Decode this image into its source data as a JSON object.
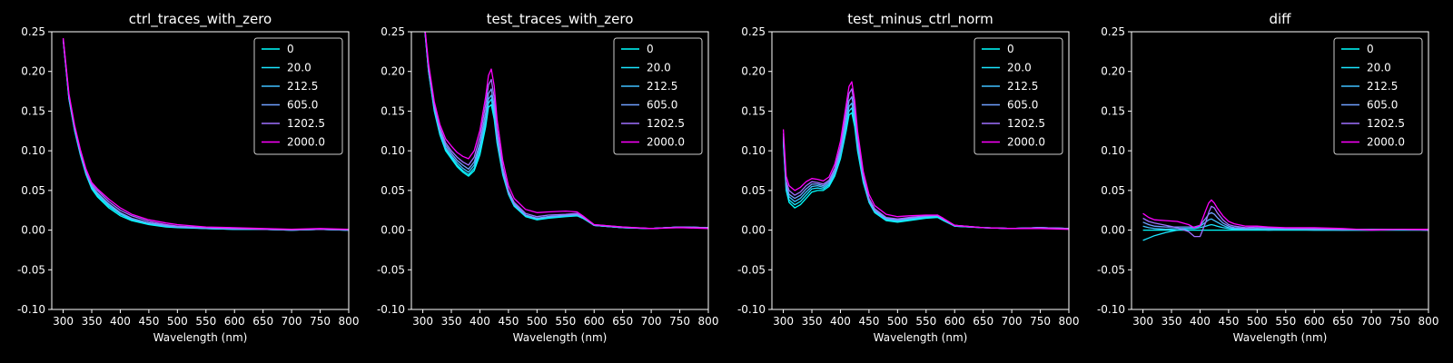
{
  "chart_data": [
    {
      "type": "line",
      "title": "ctrl_traces_with_zero",
      "xlabel": "Wavelength (nm)",
      "ylabel": "",
      "xlim": [
        280,
        800
      ],
      "ylim": [
        -0.1,
        0.25
      ],
      "xticks": [
        300,
        350,
        400,
        450,
        500,
        550,
        600,
        650,
        700,
        750,
        800
      ],
      "yticks": [
        -0.1,
        -0.05,
        0.0,
        0.05,
        0.1,
        0.15,
        0.2,
        0.25
      ],
      "legend_position": "top-right",
      "x": [
        300,
        310,
        320,
        330,
        340,
        350,
        360,
        380,
        400,
        420,
        450,
        480,
        500,
        550,
        600,
        650,
        700,
        750,
        800
      ],
      "series": [
        {
          "name": "0",
          "color": "#00ffff",
          "values": [
            0.24,
            0.165,
            0.125,
            0.095,
            0.07,
            0.052,
            0.042,
            0.028,
            0.018,
            0.012,
            0.007,
            0.004,
            0.003,
            0.002,
            0.001,
            0.001,
            0.0,
            0.001,
            0.0
          ]
        },
        {
          "name": "20.0",
          "color": "#1ae5ff",
          "values": [
            0.24,
            0.166,
            0.126,
            0.096,
            0.071,
            0.054,
            0.044,
            0.03,
            0.02,
            0.013,
            0.008,
            0.005,
            0.004,
            0.002,
            0.001,
            0.001,
            0.0,
            0.001,
            0.0
          ]
        },
        {
          "name": "212.5",
          "color": "#40c0ff",
          "values": [
            0.24,
            0.167,
            0.127,
            0.097,
            0.072,
            0.055,
            0.046,
            0.032,
            0.021,
            0.014,
            0.009,
            0.005,
            0.004,
            0.002,
            0.001,
            0.001,
            0.0,
            0.001,
            0.0
          ]
        },
        {
          "name": "605.0",
          "color": "#70a0ff",
          "values": [
            0.24,
            0.168,
            0.128,
            0.098,
            0.073,
            0.056,
            0.047,
            0.033,
            0.022,
            0.015,
            0.009,
            0.006,
            0.004,
            0.003,
            0.002,
            0.001,
            0.0,
            0.001,
            0.0
          ]
        },
        {
          "name": "1202.5",
          "color": "#a070ff",
          "values": [
            0.24,
            0.17,
            0.13,
            0.1,
            0.075,
            0.058,
            0.05,
            0.036,
            0.025,
            0.018,
            0.011,
            0.007,
            0.005,
            0.003,
            0.002,
            0.001,
            0.001,
            0.001,
            0.001
          ]
        },
        {
          "name": "2000.0",
          "color": "#ff00ff",
          "values": [
            0.242,
            0.172,
            0.132,
            0.102,
            0.077,
            0.06,
            0.052,
            0.039,
            0.028,
            0.02,
            0.013,
            0.009,
            0.007,
            0.004,
            0.003,
            0.002,
            0.001,
            0.002,
            0.001
          ]
        }
      ]
    },
    {
      "type": "line",
      "title": "test_traces_with_zero",
      "xlabel": "Wavelength (nm)",
      "ylabel": "",
      "xlim": [
        280,
        800
      ],
      "ylim": [
        -0.1,
        0.25
      ],
      "xticks": [
        300,
        350,
        400,
        450,
        500,
        550,
        600,
        650,
        700,
        750,
        800
      ],
      "yticks": [
        -0.1,
        -0.05,
        0.0,
        0.05,
        0.1,
        0.15,
        0.2,
        0.25
      ],
      "legend_position": "top-right",
      "x": [
        300,
        310,
        320,
        330,
        340,
        350,
        360,
        370,
        380,
        390,
        400,
        410,
        415,
        420,
        425,
        430,
        440,
        450,
        460,
        480,
        500,
        520,
        550,
        570,
        580,
        600,
        650,
        700,
        750,
        800
      ],
      "series": [
        {
          "name": "0",
          "color": "#00ffff",
          "values": [
            0.28,
            0.2,
            0.15,
            0.12,
            0.1,
            0.09,
            0.08,
            0.073,
            0.068,
            0.075,
            0.095,
            0.13,
            0.155,
            0.158,
            0.14,
            0.11,
            0.07,
            0.045,
            0.03,
            0.017,
            0.013,
            0.015,
            0.017,
            0.018,
            0.015,
            0.006,
            0.003,
            0.002,
            0.004,
            0.003
          ]
        },
        {
          "name": "20.0",
          "color": "#1ae5ff",
          "values": [
            0.28,
            0.2,
            0.152,
            0.122,
            0.102,
            0.092,
            0.082,
            0.075,
            0.07,
            0.078,
            0.1,
            0.135,
            0.16,
            0.165,
            0.145,
            0.113,
            0.072,
            0.046,
            0.031,
            0.018,
            0.014,
            0.016,
            0.018,
            0.019,
            0.016,
            0.006,
            0.003,
            0.002,
            0.004,
            0.003
          ]
        },
        {
          "name": "212.5",
          "color": "#40c0ff",
          "values": [
            0.28,
            0.202,
            0.154,
            0.124,
            0.104,
            0.094,
            0.085,
            0.078,
            0.073,
            0.082,
            0.105,
            0.14,
            0.165,
            0.17,
            0.15,
            0.116,
            0.074,
            0.047,
            0.032,
            0.019,
            0.015,
            0.017,
            0.018,
            0.019,
            0.016,
            0.006,
            0.003,
            0.002,
            0.004,
            0.003
          ]
        },
        {
          "name": "605.0",
          "color": "#70a0ff",
          "values": [
            0.28,
            0.204,
            0.156,
            0.126,
            0.107,
            0.097,
            0.088,
            0.082,
            0.077,
            0.086,
            0.11,
            0.148,
            0.172,
            0.178,
            0.156,
            0.12,
            0.076,
            0.048,
            0.033,
            0.019,
            0.015,
            0.017,
            0.019,
            0.02,
            0.016,
            0.006,
            0.003,
            0.002,
            0.004,
            0.003
          ]
        },
        {
          "name": "1202.5",
          "color": "#a070ff",
          "values": [
            0.28,
            0.206,
            0.158,
            0.129,
            0.11,
            0.1,
            0.092,
            0.086,
            0.082,
            0.092,
            0.118,
            0.158,
            0.183,
            0.19,
            0.167,
            0.128,
            0.08,
            0.05,
            0.035,
            0.021,
            0.017,
            0.019,
            0.02,
            0.021,
            0.017,
            0.007,
            0.004,
            0.002,
            0.004,
            0.003
          ]
        },
        {
          "name": "2000.0",
          "color": "#ff00ff",
          "values": [
            0.28,
            0.21,
            0.162,
            0.133,
            0.115,
            0.106,
            0.098,
            0.093,
            0.09,
            0.1,
            0.126,
            0.168,
            0.195,
            0.203,
            0.182,
            0.14,
            0.088,
            0.056,
            0.04,
            0.026,
            0.022,
            0.023,
            0.024,
            0.023,
            0.018,
            0.007,
            0.004,
            0.002,
            0.003,
            0.002
          ]
        }
      ]
    },
    {
      "type": "line",
      "title": "test_minus_ctrl_norm",
      "xlabel": "Wavelength (nm)",
      "ylabel": "",
      "xlim": [
        280,
        800
      ],
      "ylim": [
        -0.1,
        0.25
      ],
      "xticks": [
        300,
        350,
        400,
        450,
        500,
        550,
        600,
        650,
        700,
        750,
        800
      ],
      "yticks": [
        -0.1,
        -0.05,
        0.0,
        0.05,
        0.1,
        0.15,
        0.2,
        0.25
      ],
      "legend_position": "top-right",
      "x": [
        300,
        305,
        310,
        320,
        330,
        340,
        350,
        360,
        370,
        380,
        390,
        400,
        410,
        415,
        420,
        425,
        430,
        440,
        450,
        460,
        480,
        500,
        520,
        550,
        570,
        580,
        600,
        650,
        700,
        750,
        800
      ],
      "series": [
        {
          "name": "0",
          "color": "#00ffff",
          "values": [
            0.11,
            0.05,
            0.035,
            0.028,
            0.032,
            0.04,
            0.048,
            0.05,
            0.05,
            0.055,
            0.068,
            0.09,
            0.125,
            0.145,
            0.148,
            0.13,
            0.1,
            0.06,
            0.035,
            0.022,
            0.012,
            0.01,
            0.012,
            0.015,
            0.016,
            0.012,
            0.005,
            0.003,
            0.002,
            0.003,
            0.002
          ]
        },
        {
          "name": "20.0",
          "color": "#1ae5ff",
          "values": [
            0.112,
            0.052,
            0.038,
            0.032,
            0.036,
            0.044,
            0.052,
            0.053,
            0.052,
            0.057,
            0.07,
            0.093,
            0.13,
            0.15,
            0.154,
            0.135,
            0.104,
            0.062,
            0.036,
            0.023,
            0.013,
            0.011,
            0.013,
            0.016,
            0.017,
            0.013,
            0.005,
            0.003,
            0.002,
            0.003,
            0.002
          ]
        },
        {
          "name": "212.5",
          "color": "#40c0ff",
          "values": [
            0.115,
            0.055,
            0.042,
            0.036,
            0.04,
            0.048,
            0.055,
            0.056,
            0.054,
            0.059,
            0.072,
            0.096,
            0.135,
            0.156,
            0.16,
            0.14,
            0.108,
            0.064,
            0.037,
            0.024,
            0.014,
            0.012,
            0.014,
            0.017,
            0.018,
            0.013,
            0.005,
            0.003,
            0.002,
            0.003,
            0.002
          ]
        },
        {
          "name": "605.0",
          "color": "#70a0ff",
          "values": [
            0.118,
            0.058,
            0.045,
            0.04,
            0.044,
            0.052,
            0.058,
            0.058,
            0.056,
            0.061,
            0.075,
            0.1,
            0.142,
            0.163,
            0.168,
            0.146,
            0.112,
            0.066,
            0.038,
            0.025,
            0.015,
            0.013,
            0.015,
            0.018,
            0.018,
            0.014,
            0.006,
            0.003,
            0.002,
            0.003,
            0.002
          ]
        },
        {
          "name": "1202.5",
          "color": "#a070ff",
          "values": [
            0.122,
            0.062,
            0.05,
            0.044,
            0.048,
            0.056,
            0.061,
            0.06,
            0.058,
            0.063,
            0.078,
            0.105,
            0.15,
            0.172,
            0.178,
            0.155,
            0.118,
            0.069,
            0.04,
            0.027,
            0.016,
            0.014,
            0.016,
            0.018,
            0.019,
            0.014,
            0.006,
            0.003,
            0.002,
            0.003,
            0.002
          ]
        },
        {
          "name": "2000.0",
          "color": "#ff00ff",
          "values": [
            0.127,
            0.068,
            0.056,
            0.05,
            0.054,
            0.061,
            0.065,
            0.064,
            0.062,
            0.067,
            0.083,
            0.112,
            0.158,
            0.181,
            0.187,
            0.163,
            0.125,
            0.074,
            0.045,
            0.031,
            0.02,
            0.017,
            0.018,
            0.019,
            0.019,
            0.015,
            0.006,
            0.003,
            0.002,
            0.002,
            0.001
          ]
        }
      ]
    },
    {
      "type": "line",
      "title": "diff",
      "xlabel": "Wavelength (nm)",
      "ylabel": "",
      "xlim": [
        280,
        800
      ],
      "ylim": [
        -0.1,
        0.25
      ],
      "xticks": [
        300,
        350,
        400,
        450,
        500,
        550,
        600,
        650,
        700,
        750,
        800
      ],
      "yticks": [
        -0.1,
        -0.05,
        0.0,
        0.05,
        0.1,
        0.15,
        0.2,
        0.25
      ],
      "legend_position": "top-right",
      "x": [
        300,
        310,
        320,
        340,
        360,
        380,
        390,
        400,
        410,
        415,
        420,
        425,
        430,
        440,
        450,
        460,
        480,
        500,
        520,
        550,
        600,
        650,
        700,
        750,
        800
      ],
      "series": [
        {
          "name": "0",
          "color": "#00ffff",
          "values": [
            0.0,
            0.0,
            0.0,
            0.0,
            0.0,
            0.0,
            0.0,
            0.0,
            0.0,
            0.0,
            0.0,
            0.0,
            0.0,
            0.0,
            0.0,
            0.0,
            0.0,
            0.0,
            0.0,
            0.0,
            0.0,
            0.0,
            0.0,
            0.0,
            0.0
          ]
        },
        {
          "name": "20.0",
          "color": "#1ae5ff",
          "values": [
            -0.013,
            -0.01,
            -0.007,
            -0.003,
            0.0,
            0.002,
            0.002,
            0.003,
            0.005,
            0.006,
            0.007,
            0.006,
            0.005,
            0.003,
            0.002,
            0.001,
            0.001,
            0.001,
            0.0,
            0.001,
            0.0,
            0.0,
            0.0,
            0.001,
            0.0
          ]
        },
        {
          "name": "212.5",
          "color": "#40c0ff",
          "values": [
            0.005,
            0.003,
            0.002,
            0.001,
            0.002,
            0.002,
            0.003,
            0.005,
            0.01,
            0.013,
            0.014,
            0.012,
            0.01,
            0.006,
            0.003,
            0.002,
            0.001,
            0.002,
            0.001,
            0.001,
            0.001,
            0.0,
            0.001,
            0.001,
            0.0
          ]
        },
        {
          "name": "605.0",
          "color": "#70a0ff",
          "values": [
            0.01,
            0.007,
            0.005,
            0.004,
            0.004,
            0.004,
            0.004,
            0.006,
            0.015,
            0.02,
            0.022,
            0.02,
            0.016,
            0.009,
            0.005,
            0.003,
            0.002,
            0.002,
            0.002,
            0.002,
            0.001,
            0.001,
            0.001,
            0.001,
            0.0
          ]
        },
        {
          "name": "1202.5",
          "color": "#a070ff",
          "values": [
            0.015,
            0.011,
            0.009,
            0.006,
            0.003,
            -0.002,
            -0.008,
            -0.008,
            0.01,
            0.022,
            0.03,
            0.028,
            0.022,
            0.013,
            0.007,
            0.005,
            0.003,
            0.004,
            0.003,
            0.002,
            0.002,
            0.001,
            0.001,
            0.001,
            0.0
          ]
        },
        {
          "name": "2000.0",
          "color": "#ff00ff",
          "values": [
            0.021,
            0.016,
            0.013,
            0.012,
            0.011,
            0.007,
            0.003,
            0.006,
            0.025,
            0.034,
            0.038,
            0.034,
            0.028,
            0.018,
            0.011,
            0.008,
            0.005,
            0.005,
            0.004,
            0.003,
            0.003,
            0.002,
            0.0,
            0.001,
            0.001
          ]
        }
      ]
    }
  ]
}
